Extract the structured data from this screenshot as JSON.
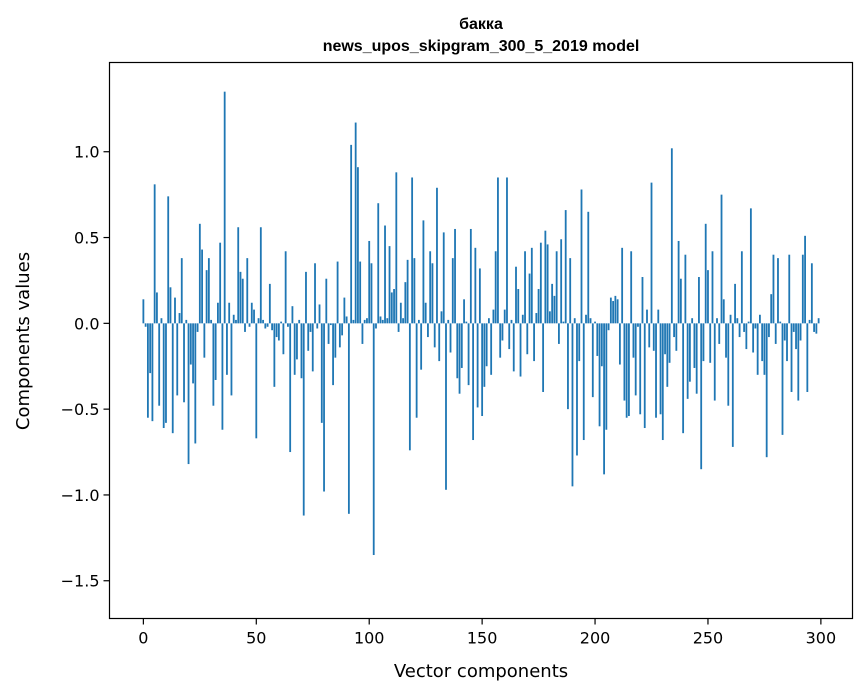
{
  "chart_data": {
    "type": "bar",
    "title": "бакка",
    "subtitle": "news_upos_skipgram_300_5_2019 model",
    "xlabel": "Vector components",
    "ylabel": "Components values",
    "xlim": [
      -15,
      314
    ],
    "ylim": [
      -1.72,
      1.52
    ],
    "xticks": [
      0,
      50,
      100,
      150,
      200,
      250,
      300
    ],
    "xtick_labels": [
      "0",
      "50",
      "100",
      "150",
      "200",
      "250",
      "300"
    ],
    "yticks": [
      1.0,
      0.5,
      0.0,
      -0.5,
      -1.0,
      -1.5
    ],
    "ytick_labels": [
      "1.0",
      "0.5",
      "0.0",
      "−0.5",
      "−1.0",
      "−1.5"
    ],
    "grid": false,
    "bar_color": "#1f77b4",
    "values": [
      0.14,
      -0.02,
      -0.55,
      -0.29,
      -0.57,
      0.81,
      0.18,
      -0.48,
      0.03,
      -0.61,
      -0.58,
      0.74,
      0.21,
      -0.64,
      0.15,
      -0.42,
      0.06,
      0.38,
      -0.46,
      0.02,
      -0.82,
      -0.24,
      -0.35,
      -0.7,
      -0.05,
      0.58,
      0.43,
      -0.2,
      0.31,
      0.38,
      0.02,
      -0.48,
      -0.33,
      0.12,
      0.47,
      -0.62,
      1.35,
      -0.3,
      0.12,
      -0.42,
      0.05,
      0.02,
      0.56,
      0.3,
      0.26,
      -0.05,
      0.38,
      -0.02,
      0.12,
      0.08,
      -0.67,
      0.03,
      0.56,
      0.02,
      -0.03,
      -0.02,
      0.23,
      -0.04,
      -0.37,
      -0.08,
      -0.1,
      0.01,
      -0.18,
      0.42,
      -0.02,
      -0.75,
      0.1,
      -0.3,
      -0.21,
      0.02,
      -0.32,
      -1.12,
      0.3,
      -0.16,
      -0.05,
      -0.28,
      0.35,
      -0.03,
      0.11,
      -0.58,
      -0.98,
      0.26,
      -0.12,
      -0.01,
      -0.36,
      -0.2,
      0.36,
      -0.14,
      -0.07,
      0.15,
      0.04,
      -1.11,
      1.04,
      0.02,
      1.17,
      0.91,
      0.36,
      -0.12,
      0.02,
      0.03,
      0.48,
      0.35,
      -1.35,
      -0.03,
      0.7,
      0.04,
      0.02,
      0.57,
      0.03,
      0.45,
      0.18,
      0.2,
      0.88,
      -0.05,
      0.12,
      0.03,
      0.24,
      0.37,
      -0.74,
      0.85,
      0.38,
      -0.55,
      0.02,
      -0.27,
      0.6,
      0.12,
      -0.08,
      0.42,
      0.35,
      -0.14,
      0.79,
      -0.22,
      0.07,
      0.53,
      -0.97,
      0.02,
      -0.17,
      0.38,
      0.55,
      -0.32,
      -0.41,
      -0.26,
      0.14,
      0.01,
      -0.36,
      0.55,
      -0.68,
      0.44,
      -0.49,
      0.32,
      -0.54,
      -0.37,
      -0.25,
      0.03,
      -0.3,
      0.08,
      0.42,
      0.85,
      -0.2,
      -0.1,
      0.08,
      0.85,
      -0.15,
      0.02,
      -0.28,
      0.33,
      0.2,
      -0.31,
      0.05,
      0.42,
      -0.18,
      0.29,
      0.44,
      -0.22,
      0.06,
      0.2,
      0.47,
      -0.4,
      0.54,
      0.46,
      0.07,
      0.23,
      0.16,
      0.42,
      -0.12,
      0.49,
      0.01,
      0.66,
      -0.5,
      0.38,
      -0.95,
      0.03,
      -0.77,
      -0.22,
      0.78,
      -0.68,
      0.05,
      0.65,
      0.03,
      -0.43,
      0.01,
      -0.19,
      -0.6,
      -0.25,
      -0.88,
      -0.62,
      -0.04,
      0.15,
      0.13,
      0.16,
      0.14,
      -0.24,
      0.44,
      -0.45,
      -0.55,
      -0.54,
      0.42,
      -0.2,
      -0.42,
      -0.02,
      -0.53,
      0.27,
      -0.61,
      0.08,
      -0.14,
      0.82,
      -0.16,
      -0.55,
      0.08,
      -0.53,
      -0.68,
      -0.18,
      -0.37,
      -0.23,
      1.02,
      -0.08,
      -0.16,
      0.48,
      0.26,
      -0.64,
      0.4,
      -0.44,
      -0.34,
      0.03,
      -0.26,
      -0.41,
      0.27,
      -0.85,
      -0.22,
      0.58,
      0.31,
      -0.23,
      0.42,
      -0.45,
      0.03,
      -0.12,
      0.75,
      0.14,
      -0.2,
      -0.48,
      0.05,
      -0.72,
      0.23,
      0.03,
      -0.08,
      0.42,
      -0.05,
      -0.15,
      0.01,
      0.67,
      -0.17,
      -0.03,
      -0.3,
      0.05,
      -0.22,
      -0.3,
      -0.78,
      -0.08,
      0.17,
      0.4,
      -0.12,
      0.38,
      0.01,
      -0.65,
      -0.1,
      -0.22,
      0.4,
      -0.4,
      -0.05,
      -0.15,
      -0.45,
      -0.1,
      0.4,
      0.51,
      -0.4,
      0.02,
      0.35,
      -0.05,
      -0.06,
      0.03
    ]
  }
}
